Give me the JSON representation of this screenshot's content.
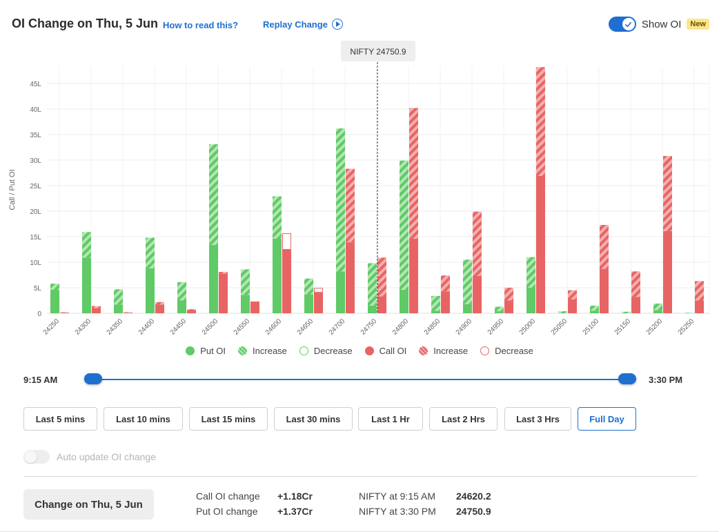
{
  "header": {
    "title": "OI Change on Thu, 5 Jun",
    "how_to_read": "How to read this?",
    "replay": "Replay Change",
    "show_oi_label": "Show OI",
    "new_badge": "New"
  },
  "chart_data": {
    "type": "bar",
    "ylabel": "Call / Put OI",
    "ytick_labels": [
      "0",
      "5L",
      "10L",
      "15L",
      "20L",
      "25L",
      "30L",
      "35L",
      "40L",
      "45L"
    ],
    "ylim": [
      0,
      48
    ],
    "unit": "L",
    "grid": true,
    "marker_label": "NIFTY 24750.9",
    "marker_strike": "24750",
    "categories": [
      "24250",
      "24300",
      "24350",
      "24400",
      "24450",
      "24500",
      "24550",
      "24600",
      "24650",
      "24700",
      "24750",
      "24800",
      "24850",
      "24900",
      "24950",
      "25000",
      "25050",
      "25100",
      "25150",
      "25200",
      "25250"
    ],
    "series": [
      {
        "name": "Put OI",
        "color": "#5fca66",
        "base": [
          4.6,
          10.9,
          1.7,
          8.8,
          2.5,
          13.4,
          3.6,
          14.6,
          3.7,
          8.2,
          1.5,
          4.6,
          0.5,
          1.8,
          0.4,
          5.0,
          0.0,
          0.5,
          0.0,
          0.6,
          0.0
        ],
        "increase": [
          1.2,
          5.0,
          3.0,
          6.0,
          3.6,
          19.7,
          5.0,
          8.3,
          3.1,
          28.0,
          8.3,
          25.3,
          2.9,
          8.7,
          0.9,
          6.0,
          0.4,
          1.0,
          0.3,
          1.3,
          0.1
        ],
        "decrease": [
          0,
          0,
          0,
          0,
          0,
          0,
          0,
          0,
          0,
          0,
          0,
          0,
          0,
          0,
          0,
          0,
          0,
          0,
          0,
          0,
          0
        ]
      },
      {
        "name": "Call OI",
        "color": "#e86464",
        "base": [
          0.1,
          1.0,
          0.1,
          1.7,
          0.6,
          7.8,
          2.3,
          12.5,
          4.1,
          13.9,
          3.3,
          14.6,
          4.3,
          7.3,
          2.5,
          26.9,
          2.7,
          8.7,
          3.2,
          16.1,
          2.5
        ],
        "increase": [
          0.1,
          0.4,
          0.1,
          0.5,
          0.2,
          0.3,
          0.0,
          0.0,
          0.0,
          14.4,
          7.6,
          25.6,
          3.1,
          12.6,
          2.5,
          21.3,
          1.8,
          8.6,
          5.0,
          14.7,
          3.8
        ],
        "decrease": [
          0,
          0,
          0,
          0,
          0,
          0,
          0,
          3.1,
          0.8,
          0,
          0,
          0,
          0,
          0,
          0,
          0,
          0,
          0,
          0,
          0,
          0
        ]
      }
    ],
    "legend": [
      {
        "label": "Put OI",
        "kind": "put-solid"
      },
      {
        "label": "Increase",
        "kind": "put-increase"
      },
      {
        "label": "Decrease",
        "kind": "put-decrease"
      },
      {
        "label": "Call OI",
        "kind": "call-solid"
      },
      {
        "label": "Increase",
        "kind": "call-increase"
      },
      {
        "label": "Decrease",
        "kind": "call-decrease"
      }
    ]
  },
  "slider": {
    "start": "9:15 AM",
    "end": "3:30 PM"
  },
  "ranges": [
    {
      "label": "Last 5 mins",
      "active": false
    },
    {
      "label": "Last 10 mins",
      "active": false
    },
    {
      "label": "Last 15 mins",
      "active": false
    },
    {
      "label": "Last 30 mins",
      "active": false
    },
    {
      "label": "Last 1 Hr",
      "active": false
    },
    {
      "label": "Last 2 Hrs",
      "active": false
    },
    {
      "label": "Last 3 Hrs",
      "active": false
    },
    {
      "label": "Full Day",
      "active": true
    }
  ],
  "auto_update": {
    "label": "Auto update OI change",
    "enabled": false
  },
  "summary": {
    "button": "Change on Thu, 5 Jun",
    "call_label": "Call OI change",
    "call_value": "+1.18Cr",
    "put_label": "Put OI change",
    "put_value": "+1.37Cr",
    "nifty_start_label": "NIFTY at 9:15 AM",
    "nifty_start_value": "24620.2",
    "nifty_end_label": "NIFTY at 3:30 PM",
    "nifty_end_value": "24750.9"
  },
  "colors": {
    "accent": "#1e6fd0",
    "put": "#5fca66",
    "put_light": "#b4e6b4",
    "call": "#e86464",
    "call_light": "#f5b0b0"
  }
}
